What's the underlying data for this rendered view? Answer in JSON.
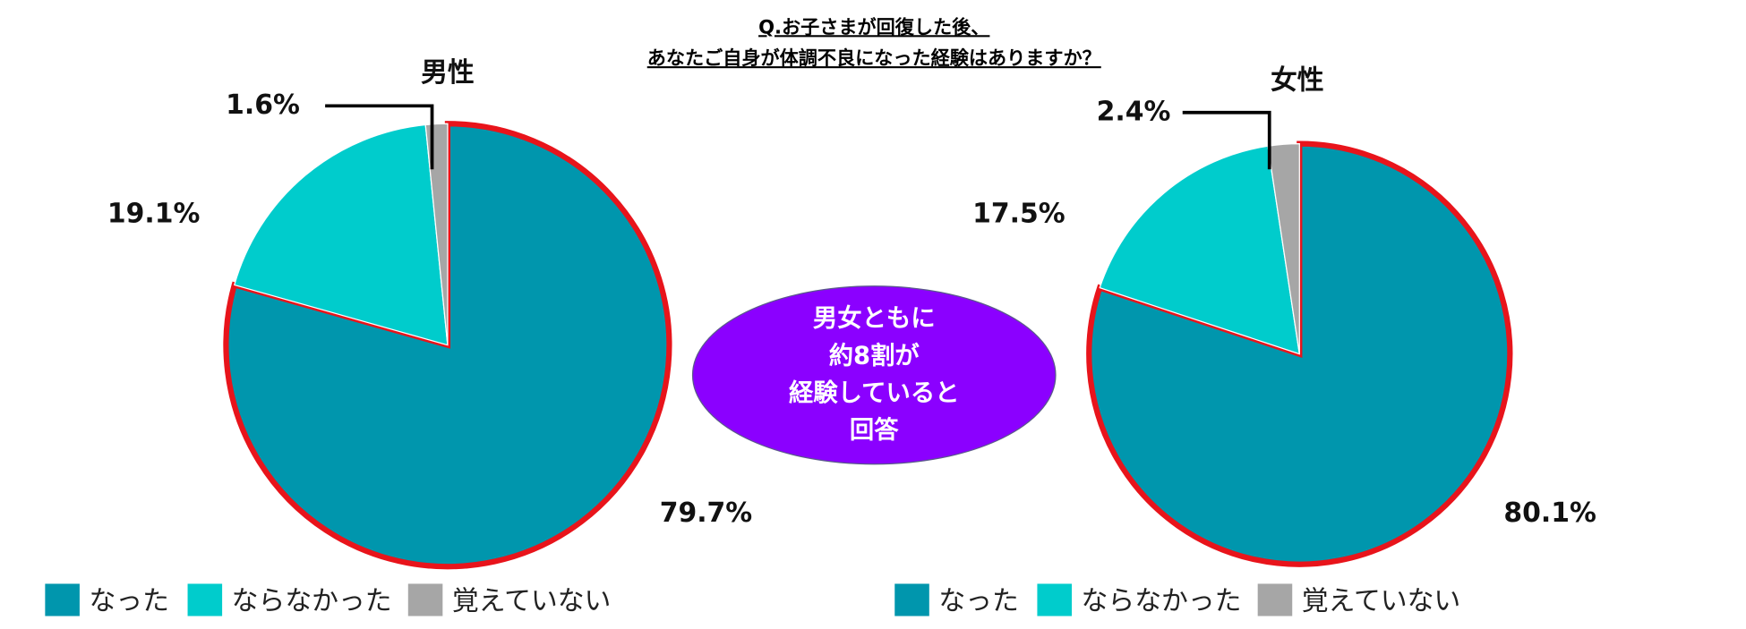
{
  "title": [
    "Q.お子さまが回復した後、",
    "あなたご自身が体調不良になった経験はありますか？"
  ],
  "callout": [
    "男女ともに",
    "約8割が",
    "経験していると",
    "回答"
  ],
  "callout_color": "#8B00FF",
  "chart_data": [
    {
      "type": "pie",
      "title": "男性",
      "categories": [
        "なった",
        "ならなかった",
        "覚えていない"
      ],
      "values": [
        79.7,
        19.1,
        1.6
      ],
      "value_labels": [
        "79.7%",
        "19.1%",
        "1.6%"
      ],
      "colors": [
        "#0096AD",
        "#00CCCC",
        "#A6A6A6"
      ],
      "highlight_color": "#E8141B"
    },
    {
      "type": "pie",
      "title": "女性",
      "categories": [
        "なった",
        "ならなかった",
        "覚えていない"
      ],
      "values": [
        80.1,
        17.5,
        2.4
      ],
      "value_labels": [
        "80.1%",
        "17.5%",
        "2.4%"
      ],
      "colors": [
        "#0096AD",
        "#00CCCC",
        "#A6A6A6"
      ],
      "highlight_color": "#E8141B"
    }
  ]
}
